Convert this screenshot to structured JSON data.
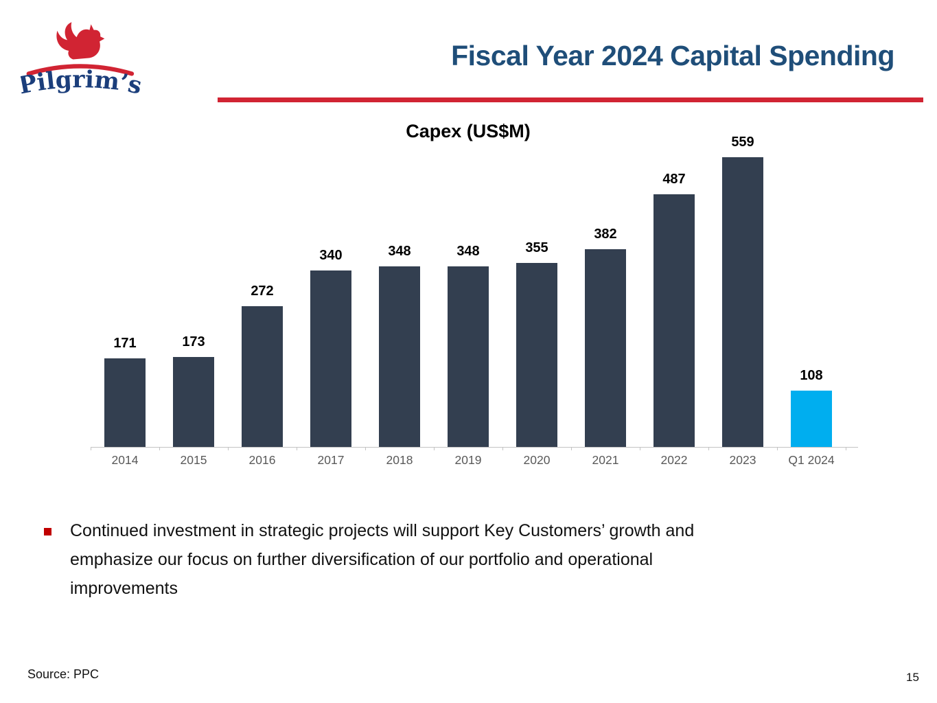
{
  "header": {
    "title": "Fiscal Year 2024 Capital Spending"
  },
  "logo": {
    "brand": "Pilgrim’s"
  },
  "chart_data": {
    "type": "bar",
    "title": "Capex (US$M)",
    "categories": [
      "2014",
      "2015",
      "2016",
      "2017",
      "2018",
      "2019",
      "2020",
      "2021",
      "2022",
      "2023",
      "Q1 2024"
    ],
    "values": [
      171,
      173,
      272,
      340,
      348,
      348,
      355,
      382,
      487,
      559,
      108
    ],
    "bar_color": "#333F50",
    "highlight_index": 10,
    "highlight_color": "#00AEEF",
    "data_labels": true,
    "ylim": [
      0,
      600
    ],
    "grid": false,
    "legend": false,
    "xlabel": "",
    "ylabel": ""
  },
  "bullets": [
    {
      "text": "Continued investment in strategic projects will support Key Customers’ growth and\nemphasize our focus on further diversification of our portfolio and operational\nimprovements"
    }
  ],
  "footer": {
    "source": "Source: PPC",
    "page_number": "15"
  },
  "colors": {
    "title_blue": "#1F4E79",
    "accent_red": "#D12433",
    "bullet_red": "#C00000",
    "bar_navy": "#333F50",
    "bar_cyan": "#00AEEF",
    "axis_gray": "#C3C3C3",
    "label_gray": "#595959",
    "logo_blue": "#1B3E7B"
  }
}
